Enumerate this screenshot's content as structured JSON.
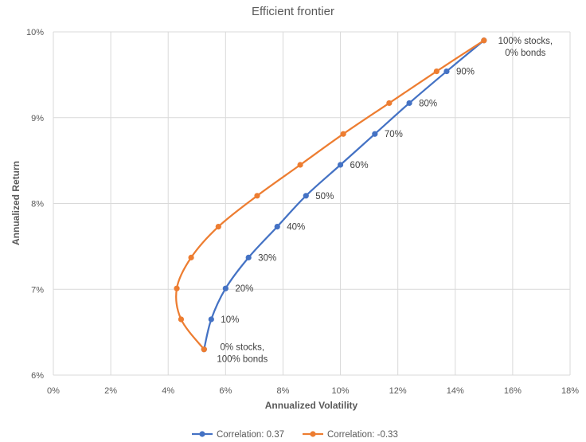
{
  "chart_data": {
    "type": "scatter",
    "title": "Efficient frontier",
    "xlabel": "Annualized Volatility",
    "ylabel": "Annualized Return",
    "xlim": [
      0,
      18
    ],
    "ylim": [
      6,
      10
    ],
    "x_ticks": [
      0,
      2,
      4,
      6,
      8,
      10,
      12,
      14,
      16,
      18
    ],
    "y_ticks": [
      6,
      7,
      8,
      9,
      10
    ],
    "x_tick_labels": [
      "0%",
      "2%",
      "4%",
      "6%",
      "8%",
      "10%",
      "12%",
      "14%",
      "16%",
      "18%"
    ],
    "y_tick_labels": [
      "6%",
      "7%",
      "8%",
      "9%",
      "10%"
    ],
    "grid": true,
    "legend_position": "bottom",
    "series": [
      {
        "name": "Correlation: 0.37",
        "color": "#4472c4",
        "points": [
          {
            "x": 5.25,
            "y": 6.3
          },
          {
            "x": 5.5,
            "y": 6.65
          },
          {
            "x": 6.0,
            "y": 7.01
          },
          {
            "x": 6.8,
            "y": 7.37
          },
          {
            "x": 7.8,
            "y": 7.73
          },
          {
            "x": 8.8,
            "y": 8.09
          },
          {
            "x": 10.0,
            "y": 8.45
          },
          {
            "x": 11.2,
            "y": 8.81
          },
          {
            "x": 12.4,
            "y": 9.17
          },
          {
            "x": 13.7,
            "y": 9.54
          },
          {
            "x": 15.0,
            "y": 9.9
          }
        ]
      },
      {
        "name": "Correlation: -0.33",
        "color": "#ed7d31",
        "points": [
          {
            "x": 5.25,
            "y": 6.3
          },
          {
            "x": 4.45,
            "y": 6.65
          },
          {
            "x": 4.3,
            "y": 7.01
          },
          {
            "x": 4.8,
            "y": 7.37
          },
          {
            "x": 5.75,
            "y": 7.73
          },
          {
            "x": 7.1,
            "y": 8.09
          },
          {
            "x": 8.6,
            "y": 8.45
          },
          {
            "x": 10.1,
            "y": 8.81
          },
          {
            "x": 11.7,
            "y": 9.17
          },
          {
            "x": 13.35,
            "y": 9.54
          },
          {
            "x": 15.0,
            "y": 9.9
          }
        ]
      }
    ],
    "annotations": [
      {
        "lines": [
          "100% stocks,",
          "0% bonds"
        ],
        "x": 15.0,
        "y": 9.9
      },
      {
        "lines": [
          "90%"
        ],
        "x": 13.7,
        "y": 9.54
      },
      {
        "lines": [
          "80%"
        ],
        "x": 12.4,
        "y": 9.17
      },
      {
        "lines": [
          "70%"
        ],
        "x": 11.2,
        "y": 8.81
      },
      {
        "lines": [
          "60%"
        ],
        "x": 10.0,
        "y": 8.45
      },
      {
        "lines": [
          "50%"
        ],
        "x": 8.8,
        "y": 8.09
      },
      {
        "lines": [
          "40%"
        ],
        "x": 7.8,
        "y": 7.73
      },
      {
        "lines": [
          "30%"
        ],
        "x": 6.8,
        "y": 7.37
      },
      {
        "lines": [
          "20%"
        ],
        "x": 6.0,
        "y": 7.01
      },
      {
        "lines": [
          "10%"
        ],
        "x": 5.5,
        "y": 6.65
      },
      {
        "lines": [
          "0% stocks,",
          "100% bonds"
        ],
        "x": 5.25,
        "y": 6.3
      }
    ]
  }
}
